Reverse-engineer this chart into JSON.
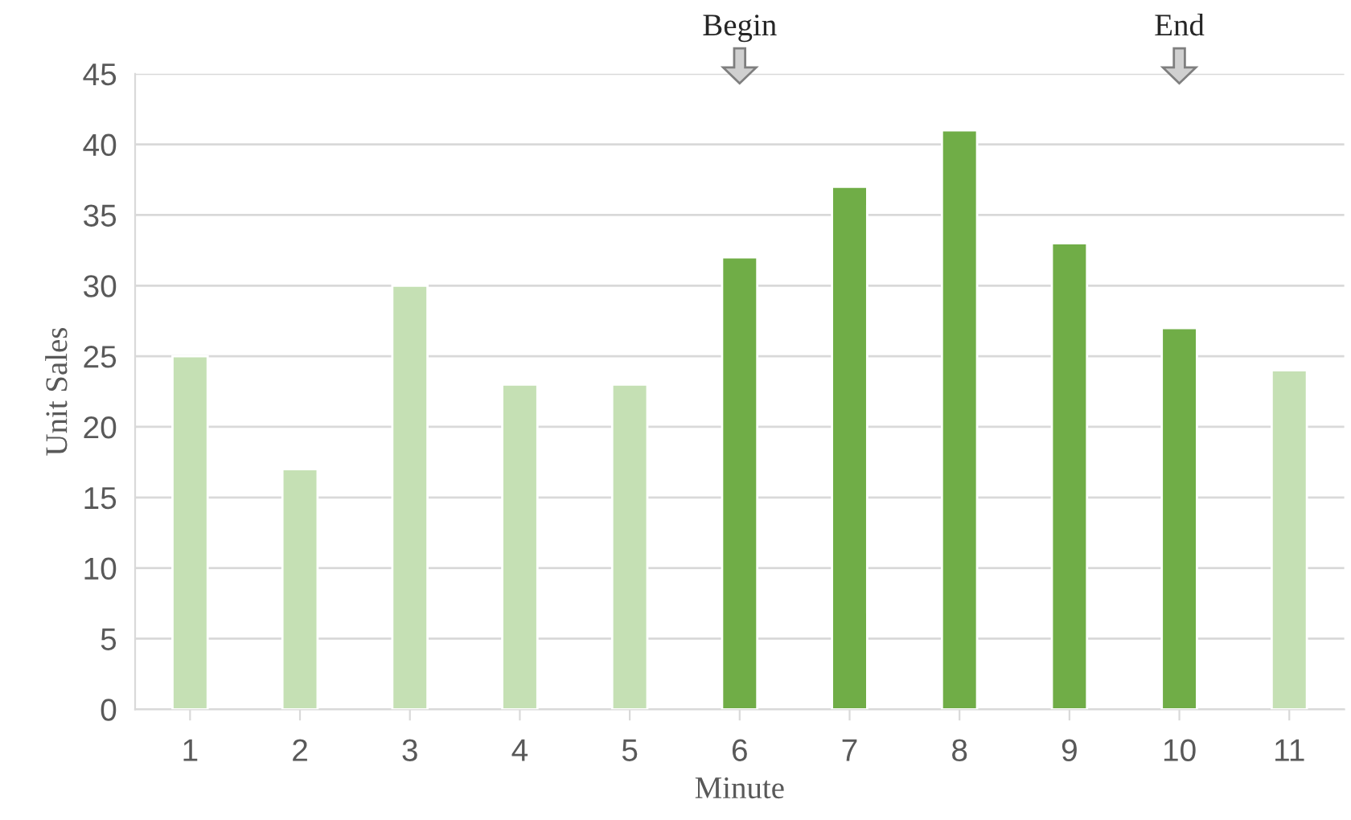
{
  "chart_data": {
    "type": "bar",
    "xlabel": "Minute",
    "ylabel": "Unit Sales",
    "categories": [
      "1",
      "2",
      "3",
      "4",
      "5",
      "6",
      "7",
      "8",
      "9",
      "10",
      "11"
    ],
    "values": [
      25,
      17,
      30,
      23,
      23,
      32,
      37,
      41,
      33,
      27,
      24
    ],
    "colors": [
      "#c5e0b4",
      "#c5e0b4",
      "#c5e0b4",
      "#c5e0b4",
      "#c5e0b4",
      "#70ad47",
      "#70ad47",
      "#70ad47",
      "#70ad47",
      "#70ad47",
      "#c5e0b4"
    ],
    "ylim": [
      0,
      45
    ],
    "yticks": [
      0,
      5,
      10,
      15,
      20,
      25,
      30,
      35,
      40,
      45
    ],
    "grid": "y",
    "annotations": [
      "Begin",
      "End"
    ]
  }
}
